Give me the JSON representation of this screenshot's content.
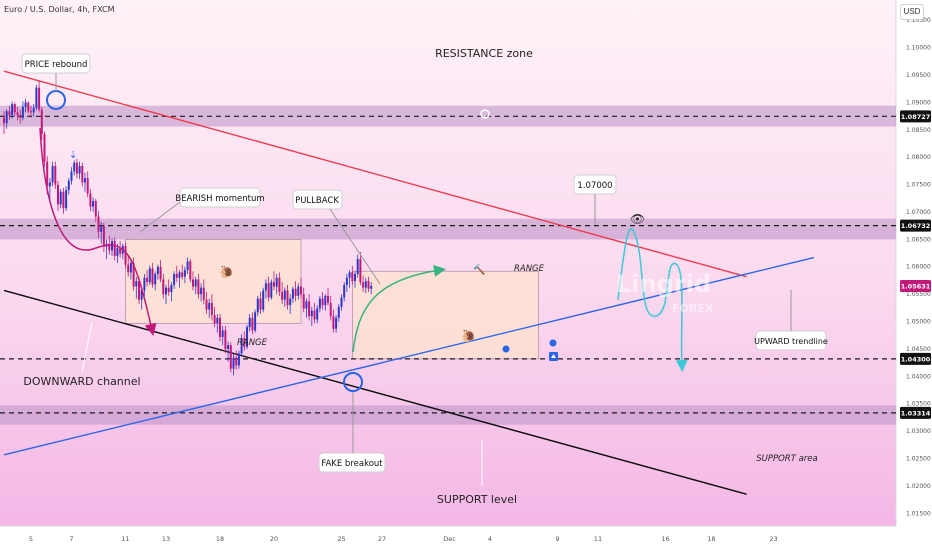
{
  "header": {
    "symbol_title": "Euro / U.S. Dollar, 4h, FXCM",
    "currency_button": "USD"
  },
  "colors": {
    "bull": "#2a39c8",
    "bear": "#c2187a",
    "resistance_line": "#ef3a4f",
    "support_line": "#0b0b0b",
    "uptrend_line": "#2b65e8",
    "projection": "#39c9d9",
    "pullback_arrow": "#36b37e",
    "zone": "#b98fc6"
  },
  "annotations": {
    "price_rebound": "PRICE rebound",
    "resistance_zone": "RESISTANCE zone",
    "bearish_momentum": "BEARISH momentum",
    "pullback": "PULLBACK",
    "level_callout": "1.07000",
    "range_left": "RANGE",
    "range_right_top": "RANGE",
    "upward_trendline": "UPWARD trendline",
    "downward_channel": "DOWNWARD channel",
    "fake_breakout": "FAKE breakout",
    "support_level": "SUPPORT level",
    "support_area": "SUPPORT area"
  },
  "watermark": {
    "brand": "Lingrid",
    "sub": "FOREX"
  },
  "chart_data": {
    "type": "candlestick",
    "y_range": [
      1.0125,
      1.1085
    ],
    "y_ticks": [
      "1.10500",
      "1.10000",
      "1.09500",
      "1.09000",
      "1.08500",
      "1.08000",
      "1.07500",
      "1.07000",
      "1.06500",
      "1.06000",
      "1.05500",
      "1.05000",
      "1.04500",
      "1.04000",
      "1.03500",
      "1.03000",
      "1.02500",
      "1.02000",
      "1.01500"
    ],
    "y_ticks_values": [
      1.105,
      1.1,
      1.095,
      1.09,
      1.085,
      1.08,
      1.075,
      1.07,
      1.065,
      1.06,
      1.055,
      1.05,
      1.045,
      1.04,
      1.035,
      1.03,
      1.025,
      1.02,
      1.015
    ],
    "x_labels": [
      "5",
      "7",
      "11",
      "13",
      "18",
      "20",
      "25",
      "27",
      "Dec",
      "4",
      "9",
      "11",
      "16",
      "18",
      "23"
    ],
    "x_label_index": [
      10,
      25,
      45,
      60,
      80,
      100,
      125,
      140,
      165,
      180,
      205,
      220,
      245,
      262,
      285
    ],
    "price_labels": [
      {
        "text": "1.08727",
        "value": 1.08727,
        "style": "dark"
      },
      {
        "text": "1.06732",
        "value": 1.06732,
        "style": "dark"
      },
      {
        "text": "1.05631",
        "value": 1.05631,
        "style": "current"
      },
      {
        "text": "1.04300",
        "value": 1.043,
        "style": "dark"
      },
      {
        "text": "1.03314",
        "value": 1.03314,
        "style": "dark"
      }
    ],
    "zones": [
      {
        "name": "resistance",
        "from": 1.0854,
        "to": 1.0892
      },
      {
        "name": "mid-resistance",
        "from": 1.0648,
        "to": 1.0686
      },
      {
        "name": "support",
        "from": 1.031,
        "to": 1.0345
      }
    ],
    "ranges": [
      {
        "name": "range-left",
        "x_from": 45,
        "x_to": 110,
        "y_from": 1.0495,
        "y_to": 1.0648
      },
      {
        "name": "range-right",
        "x_from": 129,
        "x_to": 198,
        "y_from": 1.043,
        "y_to": 1.059
      }
    ],
    "trendlines": [
      {
        "name": "resistance-line",
        "from": [
          0,
          1.0955
        ],
        "to": [
          275,
          1.058
        ]
      },
      {
        "name": "support-line",
        "from": [
          0,
          1.0555
        ],
        "to": [
          275,
          1.0183
        ]
      },
      {
        "name": "upward-trendline",
        "from": [
          0,
          1.0255
        ],
        "to": [
          300,
          1.0615
        ]
      }
    ],
    "horizontal_levels": [
      1.08727,
      1.06732,
      1.043,
      1.03314
    ],
    "candles": [
      [
        1.087,
        1.0882,
        1.084,
        1.086
      ],
      [
        1.086,
        1.0885,
        1.085,
        1.0882
      ],
      [
        1.0882,
        1.0892,
        1.0866,
        1.0875
      ],
      [
        1.0875,
        1.09,
        1.0868,
        1.0895
      ],
      [
        1.0895,
        1.0898,
        1.0872,
        1.088
      ],
      [
        1.088,
        1.089,
        1.0865,
        1.0875
      ],
      [
        1.0875,
        1.0885,
        1.086,
        1.087
      ],
      [
        1.087,
        1.09,
        1.0865,
        1.089
      ],
      [
        1.089,
        1.0905,
        1.088,
        1.0898
      ],
      [
        1.0898,
        1.09,
        1.0878,
        1.0882
      ],
      [
        1.0882,
        1.0892,
        1.087,
        1.088
      ],
      [
        1.088,
        1.0895,
        1.0872,
        1.0888
      ],
      [
        1.0888,
        1.093,
        1.0884,
        1.0925
      ],
      [
        1.0925,
        1.0938,
        1.088,
        1.0885
      ],
      [
        1.0885,
        1.089,
        1.083,
        1.084
      ],
      [
        1.084,
        1.0845,
        1.078,
        1.079
      ],
      [
        1.079,
        1.08,
        1.073,
        1.0745
      ],
      [
        1.0745,
        1.076,
        1.072,
        1.0752
      ],
      [
        1.0752,
        1.079,
        1.0745,
        1.0782
      ],
      [
        1.0782,
        1.079,
        1.074,
        1.0748
      ],
      [
        1.0748,
        1.0755,
        1.07,
        1.0712
      ],
      [
        1.0712,
        1.074,
        1.0705,
        1.0735
      ],
      [
        1.0735,
        1.0742,
        1.0695,
        1.0705
      ],
      [
        1.0705,
        1.0745,
        1.07,
        1.0738
      ],
      [
        1.0738,
        1.076,
        1.073,
        1.0755
      ],
      [
        1.0755,
        1.078,
        1.0748,
        1.0772
      ],
      [
        1.0772,
        1.0792,
        1.0765,
        1.0788
      ],
      [
        1.0788,
        1.0795,
        1.076,
        1.0768
      ],
      [
        1.0768,
        1.079,
        1.0758,
        1.0782
      ],
      [
        1.0782,
        1.0788,
        1.0745,
        1.0752
      ],
      [
        1.0752,
        1.077,
        1.0735,
        1.076
      ],
      [
        1.076,
        1.0772,
        1.0725,
        1.0732
      ],
      [
        1.0732,
        1.074,
        1.07,
        1.0708
      ],
      [
        1.0708,
        1.0725,
        1.0698,
        1.0718
      ],
      [
        1.0718,
        1.0722,
        1.068,
        1.069
      ],
      [
        1.069,
        1.07,
        1.065,
        1.0662
      ],
      [
        1.0662,
        1.068,
        1.064,
        1.0672
      ],
      [
        1.0672,
        1.0678,
        1.0625,
        1.0635
      ],
      [
        1.0635,
        1.0648,
        1.0612,
        1.064
      ],
      [
        1.064,
        1.0655,
        1.062,
        1.0628
      ],
      [
        1.0628,
        1.065,
        1.0618,
        1.0645
      ],
      [
        1.0645,
        1.0652,
        1.061,
        1.0618
      ],
      [
        1.0618,
        1.064,
        1.0605,
        1.0632
      ],
      [
        1.0632,
        1.0645,
        1.0615,
        1.0622
      ],
      [
        1.0622,
        1.064,
        1.0612,
        1.0636
      ],
      [
        1.0636,
        1.0642,
        1.0595,
        1.0602
      ],
      [
        1.0602,
        1.062,
        1.058,
        1.0588
      ],
      [
        1.0588,
        1.0612,
        1.0575,
        1.0605
      ],
      [
        1.0605,
        1.0615,
        1.0555,
        1.0562
      ],
      [
        1.0562,
        1.058,
        1.054,
        1.0572
      ],
      [
        1.0572,
        1.058,
        1.053,
        1.0538
      ],
      [
        1.0538,
        1.056,
        1.052,
        1.0555
      ],
      [
        1.0555,
        1.0585,
        1.0545,
        1.0578
      ],
      [
        1.0578,
        1.0592,
        1.0562,
        1.057
      ],
      [
        1.057,
        1.06,
        1.0565,
        1.0595
      ],
      [
        1.0595,
        1.0605,
        1.056,
        1.0566
      ],
      [
        1.0566,
        1.059,
        1.0555,
        1.0585
      ],
      [
        1.0585,
        1.0602,
        1.0575,
        1.0598
      ],
      [
        1.0598,
        1.061,
        1.057,
        1.0575
      ],
      [
        1.0575,
        1.0585,
        1.054,
        1.0548
      ],
      [
        1.0548,
        1.0565,
        1.053,
        1.056
      ],
      [
        1.056,
        1.0575,
        1.0545,
        1.0552
      ],
      [
        1.0552,
        1.057,
        1.0535,
        1.0565
      ],
      [
        1.0565,
        1.059,
        1.0558,
        1.0585
      ],
      [
        1.0585,
        1.06,
        1.057,
        1.0578
      ],
      [
        1.0578,
        1.0592,
        1.056,
        1.0588
      ],
      [
        1.0588,
        1.0602,
        1.0575,
        1.058
      ],
      [
        1.058,
        1.0598,
        1.0568,
        1.0592
      ],
      [
        1.0592,
        1.0615,
        1.0585,
        1.0608
      ],
      [
        1.0608,
        1.0612,
        1.057,
        1.0575
      ],
      [
        1.0575,
        1.059,
        1.0555,
        1.0562
      ],
      [
        1.0562,
        1.058,
        1.0548,
        1.0575
      ],
      [
        1.0575,
        1.0585,
        1.054,
        1.0548
      ],
      [
        1.0548,
        1.0568,
        1.0535,
        1.056
      ],
      [
        1.056,
        1.0575,
        1.053,
        1.0538
      ],
      [
        1.0538,
        1.0552,
        1.0512,
        1.052
      ],
      [
        1.052,
        1.054,
        1.0505,
        1.0532
      ],
      [
        1.0532,
        1.0548,
        1.05,
        1.051
      ],
      [
        1.051,
        1.0525,
        1.0488,
        1.0495
      ],
      [
        1.0495,
        1.0512,
        1.0478,
        1.0505
      ],
      [
        1.0505,
        1.0512,
        1.0462,
        1.047
      ],
      [
        1.047,
        1.049,
        1.0455,
        1.0482
      ],
      [
        1.0482,
        1.049,
        1.044,
        1.0448
      ],
      [
        1.0448,
        1.0462,
        1.0425,
        1.0455
      ],
      [
        1.0455,
        1.046,
        1.0405,
        1.0412
      ],
      [
        1.0412,
        1.044,
        1.04,
        1.0432
      ],
      [
        1.0432,
        1.0445,
        1.041,
        1.0418
      ],
      [
        1.0418,
        1.0445,
        1.0412,
        1.044
      ],
      [
        1.044,
        1.0475,
        1.0435,
        1.0468
      ],
      [
        1.0468,
        1.048,
        1.0445,
        1.0452
      ],
      [
        1.0452,
        1.0492,
        1.0448,
        1.0488
      ],
      [
        1.0488,
        1.0512,
        1.048,
        1.0505
      ],
      [
        1.0505,
        1.0515,
        1.0475,
        1.0482
      ],
      [
        1.0482,
        1.052,
        1.0478,
        1.0515
      ],
      [
        1.0515,
        1.0545,
        1.0508,
        1.054
      ],
      [
        1.054,
        1.0552,
        1.0512,
        1.052
      ],
      [
        1.052,
        1.056,
        1.0515,
        1.0555
      ],
      [
        1.0555,
        1.0575,
        1.054,
        1.0568
      ],
      [
        1.0568,
        1.058,
        1.0535,
        1.0542
      ],
      [
        1.0542,
        1.0575,
        1.0538,
        1.057
      ],
      [
        1.057,
        1.059,
        1.0555,
        1.0562
      ],
      [
        1.0562,
        1.0585,
        1.0548,
        1.0578
      ],
      [
        1.0578,
        1.0588,
        1.0545,
        1.0552
      ],
      [
        1.0552,
        1.057,
        1.053,
        1.0538
      ],
      [
        1.0538,
        1.056,
        1.0525,
        1.0555
      ],
      [
        1.0555,
        1.0565,
        1.052,
        1.0528
      ],
      [
        1.0528,
        1.0548,
        1.0512,
        1.054
      ],
      [
        1.054,
        1.0562,
        1.0532,
        1.0558
      ],
      [
        1.0558,
        1.0572,
        1.0535,
        1.0545
      ],
      [
        1.0545,
        1.0568,
        1.0538,
        1.0562
      ],
      [
        1.0562,
        1.0578,
        1.054,
        1.0548
      ],
      [
        1.0548,
        1.056,
        1.0515,
        1.0522
      ],
      [
        1.0522,
        1.054,
        1.0505,
        1.0535
      ],
      [
        1.0535,
        1.0548,
        1.05,
        1.0508
      ],
      [
        1.0508,
        1.0525,
        1.049,
        1.0518
      ],
      [
        1.0518,
        1.0532,
        1.0495,
        1.0502
      ],
      [
        1.0502,
        1.0528,
        1.0495,
        1.0522
      ],
      [
        1.0522,
        1.0545,
        1.0515,
        1.054
      ],
      [
        1.054,
        1.0552,
        1.052,
        1.0528
      ],
      [
        1.0528,
        1.0548,
        1.0518,
        1.0545
      ],
      [
        1.0545,
        1.056,
        1.0528,
        1.0532
      ],
      [
        1.0532,
        1.0545,
        1.05,
        1.0508
      ],
      [
        1.0508,
        1.052,
        1.0478,
        1.0485
      ],
      [
        1.0485,
        1.051,
        1.0478,
        1.0505
      ],
      [
        1.0505,
        1.053,
        1.0498,
        1.0525
      ],
      [
        1.0525,
        1.0548,
        1.0518,
        1.0542
      ],
      [
        1.0542,
        1.057,
        1.0535,
        1.0565
      ],
      [
        1.0565,
        1.0585,
        1.0552,
        1.0578
      ],
      [
        1.0578,
        1.0592,
        1.056,
        1.0588
      ],
      [
        1.0588,
        1.06,
        1.0565,
        1.0572
      ],
      [
        1.0572,
        1.059,
        1.056,
        1.0585
      ],
      [
        1.0585,
        1.062,
        1.0578,
        1.0612
      ],
      [
        1.0612,
        1.0625,
        1.0565,
        1.057
      ],
      [
        1.057,
        1.0582,
        1.0552,
        1.056
      ],
      [
        1.056,
        1.0578,
        1.055,
        1.0572
      ],
      [
        1.0572,
        1.058,
        1.0552,
        1.0558
      ],
      [
        1.0558,
        1.057,
        1.0548,
        1.0563
      ]
    ]
  }
}
